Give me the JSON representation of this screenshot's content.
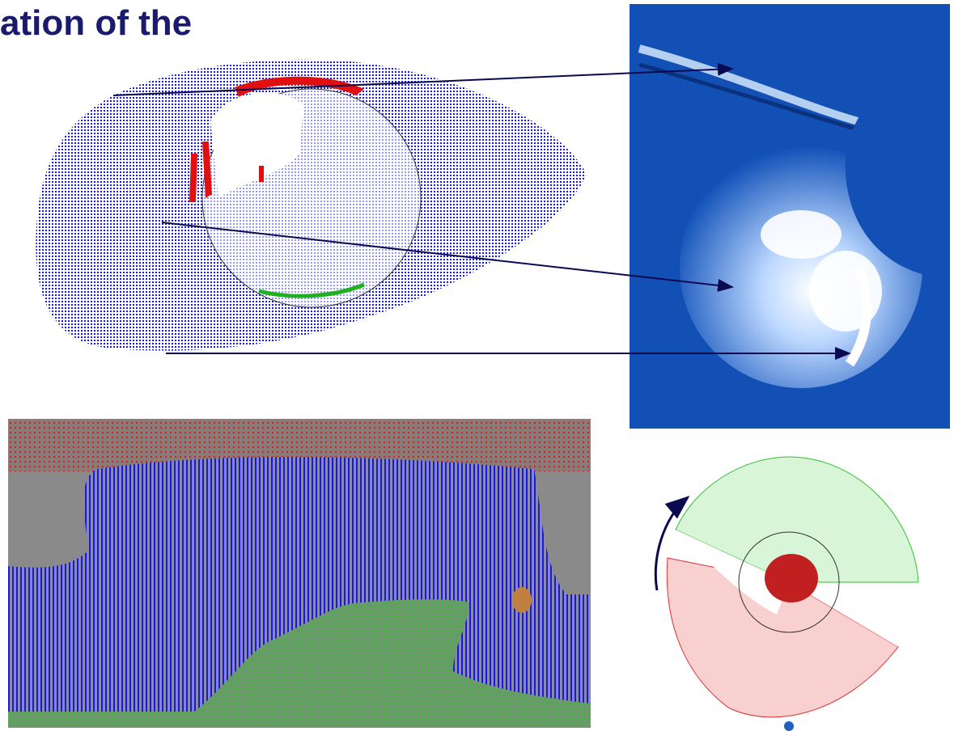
{
  "header": {
    "title": "ation of the"
  }
}
